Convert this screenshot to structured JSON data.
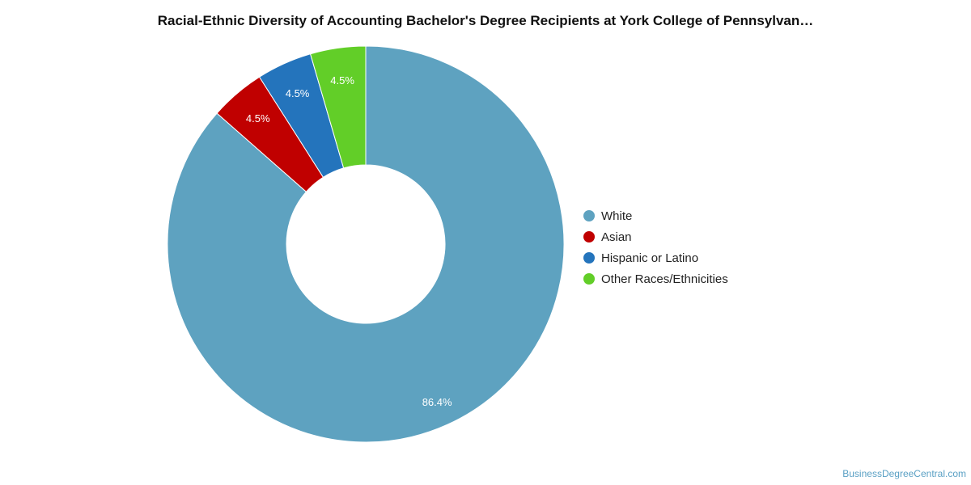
{
  "chart_data": {
    "type": "pie",
    "title": "Racial-Ethnic Diversity of Accounting Bachelor's Degree Recipients at York College of Pennsylvan…",
    "donut": true,
    "categories": [
      "White",
      "Asian",
      "Hispanic or Latino",
      "Other Races/Ethnicities"
    ],
    "values": [
      86.4,
      4.5,
      4.5,
      4.5
    ],
    "value_labels": [
      "86.4%",
      "4.5%",
      "4.5%",
      "4.5%"
    ],
    "colors": [
      "#5ea2c0",
      "#c00000",
      "#2474bc",
      "#62ce28"
    ],
    "legend_position": "right"
  },
  "watermark": "BusinessDegreeCentral.com"
}
